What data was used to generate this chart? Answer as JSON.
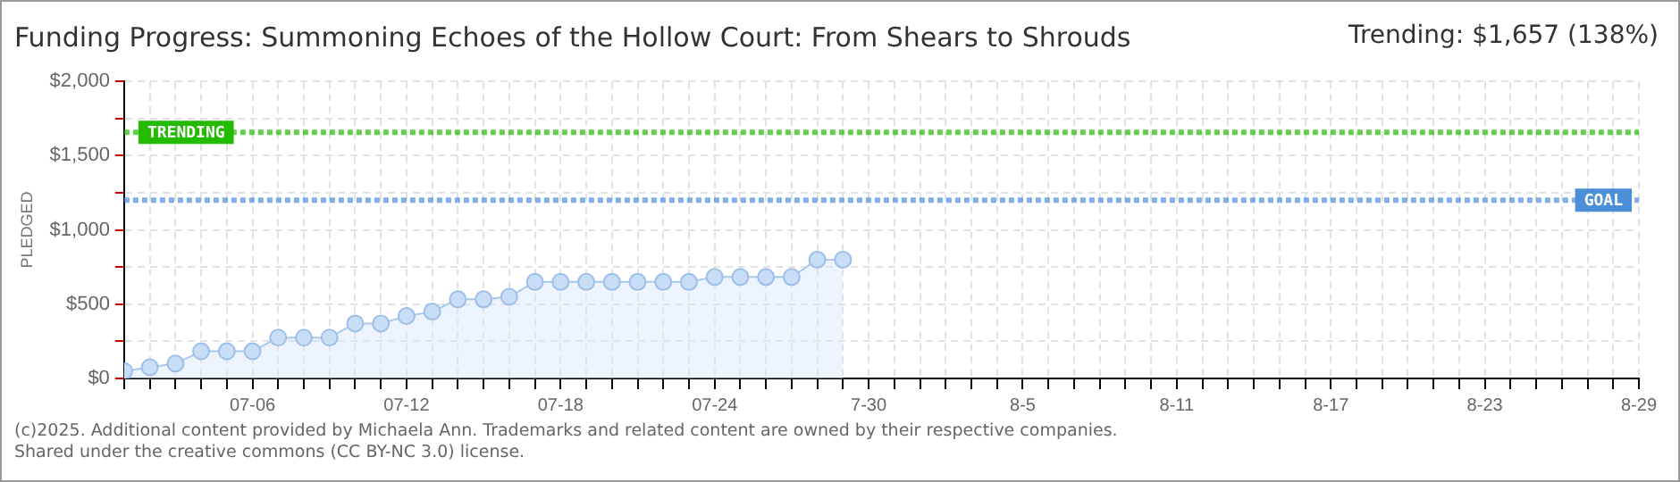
{
  "chart_data": {
    "type": "area",
    "title": "Funding Progress: Summoning Echoes of the Hollow Court: From Shears to Shrouds",
    "ylabel": "PLEDGED",
    "annotations": [
      "Trending: $1,657 (138%)",
      "(c)2025. Additional content provided by Michaela Ann. Trademarks and related content are owned by their respective companies.",
      "Shared under the creative commons (CC BY-NC 3.0) license."
    ],
    "x": [
      "--07-01",
      "--07-02",
      "--07-03",
      "--07-04",
      "--07-05",
      "--07-06",
      "--07-07",
      "--07-08",
      "--07-09",
      "--07-10",
      "--07-11",
      "--07-12",
      "--07-13",
      "--07-14",
      "--07-15",
      "--07-16",
      "--07-17",
      "--07-18",
      "--07-19",
      "--07-20",
      "--07-21",
      "--07-22",
      "--07-23",
      "--07-24",
      "--07-25",
      "--07-26",
      "--07-27",
      "--07-28",
      "--07-29"
    ],
    "series": [
      {
        "color": "#a8c8ee",
        "values": [
          50,
          75,
          100,
          183,
          183,
          183,
          275,
          275,
          275,
          370,
          370,
          420,
          450,
          533,
          533,
          550,
          650,
          650,
          650,
          650,
          650,
          650,
          650,
          683,
          683,
          683,
          683,
          800,
          800
        ]
      }
    ],
    "xlim": [
      "--07-01",
      "--08-29"
    ],
    "xticks": [
      {
        "value": "--07-01",
        "label": null
      },
      {
        "value": "--07-02",
        "label": null
      },
      {
        "value": "--07-03",
        "label": null
      },
      {
        "value": "--07-04",
        "label": null
      },
      {
        "value": "--07-05",
        "label": null
      },
      {
        "value": "--07-06",
        "label": "07-06"
      },
      {
        "value": "--07-07",
        "label": null
      },
      {
        "value": "--07-08",
        "label": null
      },
      {
        "value": "--07-09",
        "label": null
      },
      {
        "value": "--07-10",
        "label": null
      },
      {
        "value": "--07-11",
        "label": null
      },
      {
        "value": "--07-12",
        "label": "07-12"
      },
      {
        "value": "--07-13",
        "label": null
      },
      {
        "value": "--07-14",
        "label": null
      },
      {
        "value": "--07-15",
        "label": null
      },
      {
        "value": "--07-16",
        "label": null
      },
      {
        "value": "--07-17",
        "label": null
      },
      {
        "value": "--07-18",
        "label": "07-18"
      },
      {
        "value": "--07-19",
        "label": null
      },
      {
        "value": "--07-20",
        "label": null
      },
      {
        "value": "--07-21",
        "label": null
      },
      {
        "value": "--07-22",
        "label": null
      },
      {
        "value": "--07-23",
        "label": null
      },
      {
        "value": "--07-24",
        "label": "07-24"
      },
      {
        "value": "--07-25",
        "label": null
      },
      {
        "value": "--07-26",
        "label": null
      },
      {
        "value": "--07-27",
        "label": null
      },
      {
        "value": "--07-28",
        "label": null
      },
      {
        "value": "--07-29",
        "label": null
      },
      {
        "value": "--07-30",
        "label": "7-30"
      },
      {
        "value": "--07-31",
        "label": null
      },
      {
        "value": "--08-01",
        "label": null
      },
      {
        "value": "--08-02",
        "label": null
      },
      {
        "value": "--08-03",
        "label": null
      },
      {
        "value": "--08-04",
        "label": null
      },
      {
        "value": "--08-05",
        "label": "8-5"
      },
      {
        "value": "--08-06",
        "label": null
      },
      {
        "value": "--08-07",
        "label": null
      },
      {
        "value": "--08-08",
        "label": null
      },
      {
        "value": "--08-09",
        "label": null
      },
      {
        "value": "--08-10",
        "label": null
      },
      {
        "value": "--08-11",
        "label": "8-11"
      },
      {
        "value": "--08-12",
        "label": null
      },
      {
        "value": "--08-13",
        "label": null
      },
      {
        "value": "--08-14",
        "label": null
      },
      {
        "value": "--08-15",
        "label": null
      },
      {
        "value": "--08-16",
        "label": null
      },
      {
        "value": "--08-17",
        "label": "8-17"
      },
      {
        "value": "--08-18",
        "label": null
      },
      {
        "value": "--08-19",
        "label": null
      },
      {
        "value": "--08-20",
        "label": null
      },
      {
        "value": "--08-21",
        "label": null
      },
      {
        "value": "--08-22",
        "label": null
      },
      {
        "value": "--08-23",
        "label": "8-23"
      },
      {
        "value": "--08-24",
        "label": null
      },
      {
        "value": "--08-25",
        "label": null
      },
      {
        "value": "--08-26",
        "label": null
      },
      {
        "value": "--08-27",
        "label": null
      },
      {
        "value": "--08-28",
        "label": null
      },
      {
        "value": "--08-29",
        "label": "8-29"
      }
    ],
    "ylim": [
      0,
      2000
    ],
    "yticks": [
      {
        "value": 0,
        "label": "$0"
      },
      {
        "value": 250,
        "label": null
      },
      {
        "value": 500,
        "label": "$500"
      },
      {
        "value": 750,
        "label": null
      },
      {
        "value": 1000,
        "label": "$1,000"
      },
      {
        "value": 1250,
        "label": null
      },
      {
        "value": 1500,
        "label": "$1,500"
      },
      {
        "value": 1750,
        "label": null
      },
      {
        "value": 2000,
        "label": "$2,000"
      }
    ],
    "ref_lines": [
      {
        "axis": "y",
        "value": 1657,
        "label": "TRENDING",
        "color": "#22bb00",
        "line_style": "dotted"
      },
      {
        "axis": "y",
        "value": 1200,
        "label": "GOAL",
        "color": "#4a8fd8",
        "line_style": "dotted"
      }
    ],
    "grid": true,
    "legend": false,
    "marker": "circle",
    "line_style": "solid"
  }
}
